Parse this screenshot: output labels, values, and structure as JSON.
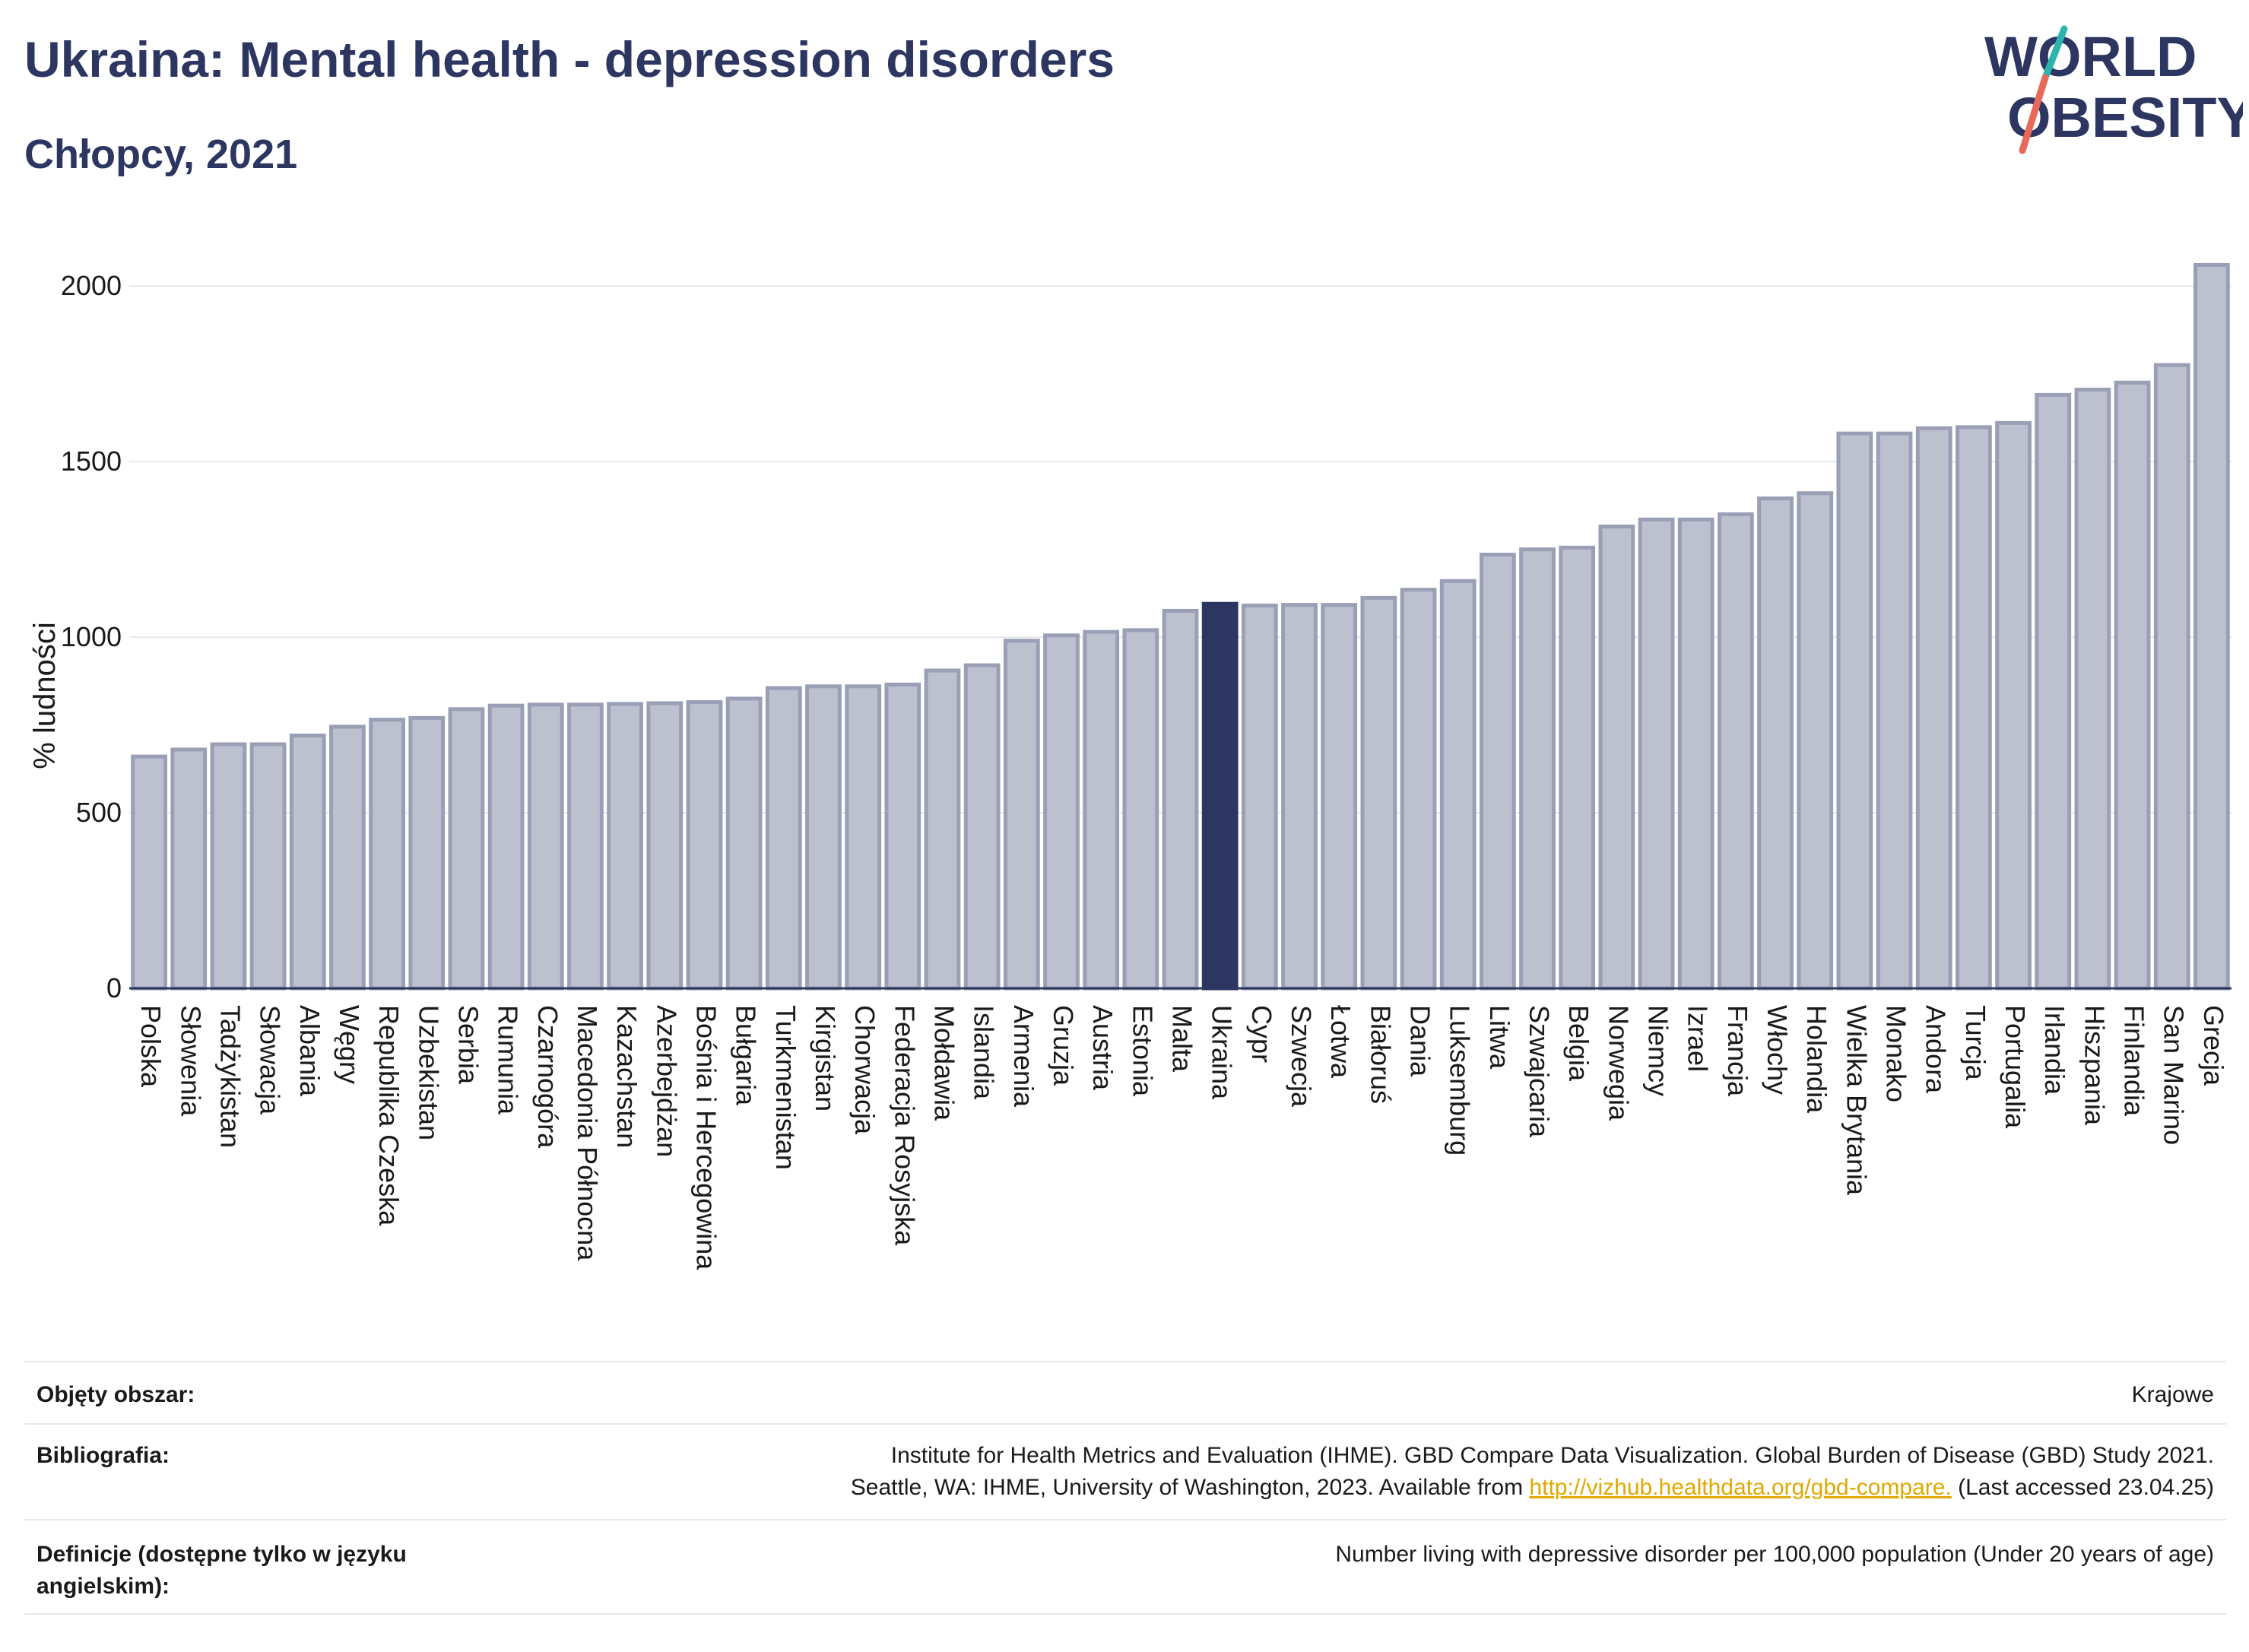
{
  "header": {
    "title": "Ukraina: Mental health - depression disorders",
    "subtitle": "Chłopcy, 2021"
  },
  "logo": {
    "line1": "WORLD",
    "line2": "OBESITY",
    "colors": {
      "text": "#2d3561",
      "slash_top": "#2cb5ac",
      "slash_bottom": "#e8695a"
    }
  },
  "colors": {
    "bar_fill": "#bcc0cf",
    "bar_stroke": "#9a9fb6",
    "highlight": "#2d3561",
    "grid": "#e6e8ef"
  },
  "chart_data": {
    "type": "bar",
    "ylabel": "% ludności",
    "ylim": [
      0,
      2100
    ],
    "yticks": [
      0,
      500,
      1000,
      1500,
      2000
    ],
    "grid": true,
    "highlight": "Ukraina",
    "categories": [
      "Polska",
      "Słowenia",
      "Tadżykistan",
      "Słowacja",
      "Albania",
      "Węgry",
      "Republika Czeska",
      "Uzbekistan",
      "Serbia",
      "Rumunia",
      "Czarnogóra",
      "Macedonia Północna",
      "Kazachstan",
      "Azerbejdżan",
      "Bośnia i Hercegowina",
      "Bułgaria",
      "Turkmenistan",
      "Kirgistan",
      "Chorwacja",
      "Federacja Rosyjska",
      "Mołdawia",
      "Islandia",
      "Armenia",
      "Gruzja",
      "Austria",
      "Estonia",
      "Malta",
      "Ukraina",
      "Cypr",
      "Szwecja",
      "Łotwa",
      "Białoruś",
      "Dania",
      "Luksemburg",
      "Litwa",
      "Szwajcaria",
      "Belgia",
      "Norwegia",
      "Niemcy",
      "Izrael",
      "Francja",
      "Włochy",
      "Holandia",
      "Wielka Brytania",
      "Monako",
      "Andora",
      "Turcja",
      "Portugalia",
      "Irlandia",
      "Hiszpania",
      "Finlandia",
      "San Marino",
      "Grecja"
    ],
    "values": [
      660,
      680,
      695,
      695,
      720,
      745,
      765,
      770,
      795,
      805,
      808,
      808,
      810,
      812,
      815,
      825,
      855,
      860,
      860,
      865,
      905,
      920,
      990,
      1005,
      1015,
      1020,
      1075,
      1095,
      1090,
      1092,
      1092,
      1112,
      1135,
      1160,
      1235,
      1250,
      1255,
      1315,
      1335,
      1335,
      1350,
      1395,
      1410,
      1580,
      1580,
      1595,
      1598,
      1610,
      1690,
      1705,
      1725,
      1775,
      2060
    ]
  },
  "info": {
    "scope_label": "Objęty obszar:",
    "scope_value": "Krajowe",
    "bib_label": "Bibliografia:",
    "bib_line1": "Institute for Health Metrics and Evaluation (IHME). GBD Compare Data Visualization. Global Burden of Disease (GBD) Study 2021.",
    "bib_line2_pre": "Seattle, WA: IHME, University of Washington, 2023. Available from",
    "bib_link": "http://vizhub.healthdata.org/gbd-compare.",
    "bib_line2_post": "(Last accessed 23.04.25)",
    "def_label": "Definicje (dostępne tylko w języku angielskim):",
    "def_value": "Number living with depressive disorder per 100,000 population (Under 20 years of age)"
  }
}
